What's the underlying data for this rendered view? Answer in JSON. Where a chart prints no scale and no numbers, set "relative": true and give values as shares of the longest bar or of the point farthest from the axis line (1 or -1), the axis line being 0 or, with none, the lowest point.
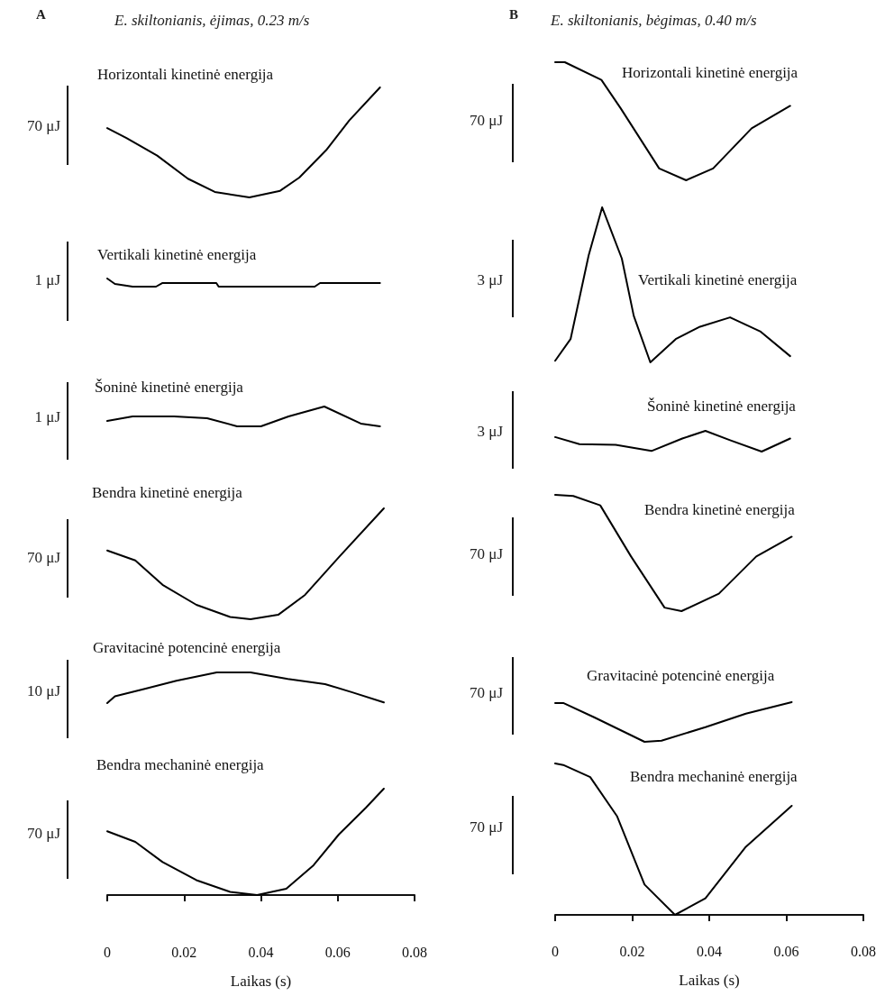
{
  "chart_data": [
    {
      "type": "line",
      "title": "Horizontali kinetinė energija",
      "ylabel": "70 μJ",
      "annotations": [
        "A",
        "E. skiltonianis, ėjimas, 0.23 m/s"
      ],
      "relative": true,
      "color": "#000000",
      "xlim": [
        0,
        0.08
      ],
      "tick_labels": false,
      "x": [
        0,
        0.005,
        0.013,
        0.021,
        0.028,
        0.037,
        0.045,
        0.05,
        0.057,
        0.063,
        0.071
      ],
      "values": [
        0.63,
        0.54,
        0.38,
        0.17,
        0.05,
        0,
        0.06,
        0.18,
        0.43,
        0.7,
        1
      ]
    },
    {
      "type": "line",
      "title": "Horizontali kinetinė energija",
      "ylabel": "70 μJ",
      "annotations": [
        "B",
        "E. skiltonianis, bėgimas, 0.40 m/s"
      ],
      "relative": true,
      "color": "#000000",
      "xlim": [
        0,
        0.08
      ],
      "tick_labels": false,
      "x": [
        0,
        0.0025,
        0.012,
        0.017,
        0.027,
        0.034,
        0.041,
        0.051,
        0.061
      ],
      "values": [
        1,
        1,
        0.85,
        0.61,
        0.1,
        0,
        0.1,
        0.44,
        0.63
      ]
    },
    {
      "type": "line",
      "title": "Vertikali kinetinė energija",
      "ylabel": "1 μJ",
      "relative": true,
      "color": "#000000",
      "xlim": [
        0,
        0.08
      ],
      "tick_labels": false,
      "x": [
        0,
        0.002,
        0.0066,
        0.0127,
        0.0143,
        0.0284,
        0.029,
        0.054,
        0.0554,
        0.071
      ],
      "values": [
        1,
        0.33,
        0,
        0,
        0.44,
        0.44,
        0,
        0,
        0.44,
        0.44
      ]
    },
    {
      "type": "line",
      "title": "Vertikali kinetinė energija",
      "ylabel": "3 μJ",
      "relative": true,
      "color": "#000000",
      "xlim": [
        0,
        0.08
      ],
      "tick_labels": false,
      "x": [
        0,
        0.004,
        0.0087,
        0.0122,
        0.0173,
        0.0204,
        0.0247,
        0.0313,
        0.0376,
        0.0454,
        0.0532,
        0.061
      ],
      "values": [
        0.01,
        0.15,
        0.69,
        1,
        0.67,
        0.3,
        0,
        0.15,
        0.23,
        0.29,
        0.2,
        0.04
      ]
    },
    {
      "type": "line",
      "title": "Šoninė kinetinė energija",
      "ylabel": "1 μJ",
      "relative": true,
      "color": "#000000",
      "xlim": [
        0,
        0.08
      ],
      "tick_labels": false,
      "x": [
        0,
        0.0066,
        0.0174,
        0.026,
        0.0338,
        0.04,
        0.0472,
        0.0565,
        0.066,
        0.071
      ],
      "values": [
        0.27,
        0.5,
        0.5,
        0.41,
        0,
        0,
        0.5,
        1,
        0.14,
        0
      ]
    },
    {
      "type": "line",
      "title": "Šoninė kinetinė energija",
      "ylabel": "3 μJ",
      "relative": true,
      "color": "#000000",
      "xlim": [
        0,
        0.08
      ],
      "tick_labels": false,
      "x": [
        0,
        0.0063,
        0.0157,
        0.025,
        0.033,
        0.039,
        0.0454,
        0.0536,
        0.061
      ],
      "values": [
        0.7,
        0.36,
        0.33,
        0.03,
        0.63,
        1,
        0.55,
        0,
        0.63
      ]
    },
    {
      "type": "line",
      "title": "Bendra kinetinė energija",
      "ylabel": "70 μJ",
      "relative": true,
      "color": "#000000",
      "xlim": [
        0,
        0.08
      ],
      "tick_labels": false,
      "x": [
        0,
        0.0073,
        0.0144,
        0.0232,
        0.032,
        0.0373,
        0.0445,
        0.0515,
        0.0603,
        0.072
      ],
      "values": [
        0.62,
        0.53,
        0.31,
        0.13,
        0.02,
        0,
        0.04,
        0.22,
        0.56,
        1
      ]
    },
    {
      "type": "line",
      "title": "Bendra kinetinė energija",
      "ylabel": "70 μJ",
      "relative": true,
      "color": "#000000",
      "xlim": [
        0,
        0.08
      ],
      "tick_labels": false,
      "x": [
        0,
        0.0047,
        0.0117,
        0.0197,
        0.0284,
        0.0328,
        0.0425,
        0.0522,
        0.0614
      ],
      "values": [
        1,
        0.99,
        0.91,
        0.47,
        0.03,
        0,
        0.15,
        0.47,
        0.64
      ]
    },
    {
      "type": "line",
      "title": "Gravitacinė potencinė energija",
      "ylabel": "10 μJ",
      "relative": true,
      "color": "#000000",
      "xlim": [
        0,
        0.08
      ],
      "tick_labels": false,
      "x": [
        0,
        0.002,
        0.01,
        0.018,
        0.0285,
        0.0373,
        0.047,
        0.0567,
        0.0638,
        0.072
      ],
      "values": [
        0,
        0.22,
        0.47,
        0.73,
        1,
        1,
        0.79,
        0.62,
        0.35,
        0.02
      ]
    },
    {
      "type": "line",
      "title": "Gravitacinė potencinė energija",
      "ylabel": "70 μJ",
      "relative": true,
      "color": "#000000",
      "xlim": [
        0,
        0.08
      ],
      "tick_labels": false,
      "x": [
        0,
        0.0021,
        0.0101,
        0.0232,
        0.0276,
        0.039,
        0.0495,
        0.0614
      ],
      "values": [
        0.98,
        0.98,
        0.62,
        0,
        0.03,
        0.37,
        0.71,
        1
      ]
    },
    {
      "type": "line",
      "title": "Bendra mechaninė energija",
      "ylabel": "70 μJ",
      "xlabel": "Laikas (s)",
      "relative": true,
      "color": "#000000",
      "xlim": [
        0,
        0.08
      ],
      "xticks": [
        0,
        0.02,
        0.04,
        0.06,
        0.08
      ],
      "tick_labels": "x",
      "x": [
        0,
        0.0073,
        0.0144,
        0.0232,
        0.032,
        0.039,
        0.0466,
        0.0537,
        0.0603,
        0.0673,
        0.072
      ],
      "values": [
        0.6,
        0.5,
        0.31,
        0.14,
        0.03,
        0,
        0.06,
        0.28,
        0.57,
        0.82,
        1
      ]
    },
    {
      "type": "line",
      "title": "Bendra mechaninė energija",
      "ylabel": "70 μJ",
      "xlabel": "Laikas (s)",
      "relative": true,
      "color": "#000000",
      "xlim": [
        0,
        0.08
      ],
      "xticks": [
        0,
        0.02,
        0.04,
        0.06,
        0.08
      ],
      "tick_labels": "x",
      "x": [
        0,
        0.0021,
        0.0091,
        0.0161,
        0.0232,
        0.0311,
        0.039,
        0.0495,
        0.0614
      ],
      "values": [
        1,
        0.99,
        0.91,
        0.65,
        0.2,
        0,
        0.11,
        0.45,
        0.72
      ]
    }
  ]
}
